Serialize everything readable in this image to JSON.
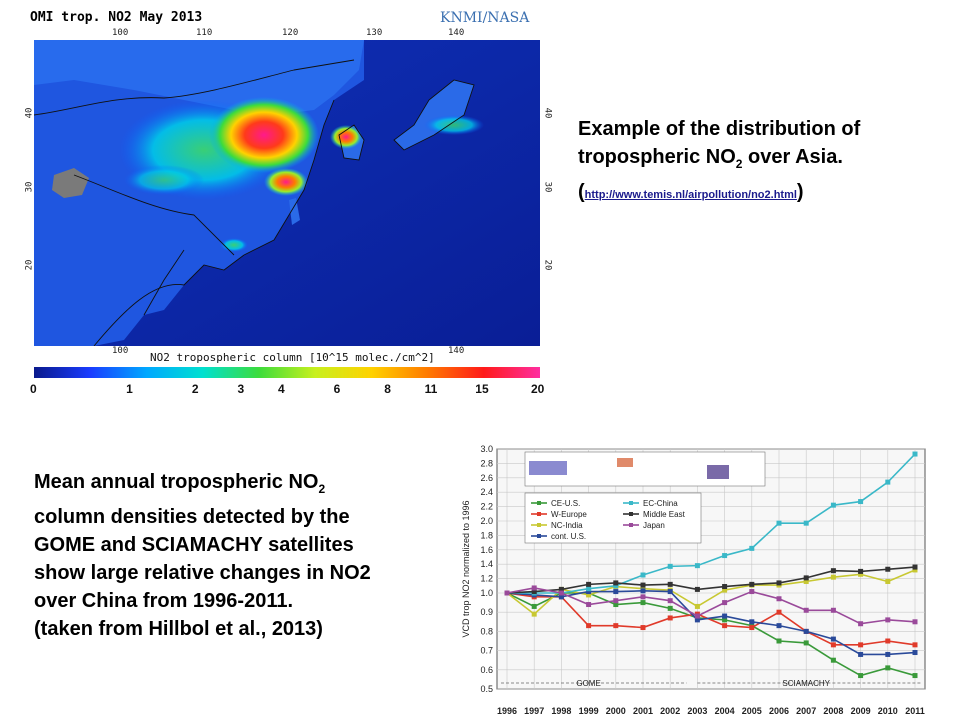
{
  "map": {
    "title": "OMI trop. NO2  May 2013",
    "credit": "KNMI/NASA",
    "lon_ticks": [
      "100",
      "110",
      "120",
      "130",
      "140"
    ],
    "lat_ticks": [
      "40",
      "30",
      "20"
    ],
    "caption": "NO2 tropospheric column [10^15 molec./cm^2]",
    "colorbar_labels": [
      "0",
      "1",
      "2",
      "3",
      "4",
      "6",
      "8",
      "11",
      "15",
      "20"
    ],
    "colorbar_colors": [
      "#0a1a8c",
      "#1a3cff",
      "#00a8ff",
      "#00e0d0",
      "#3cdc3c",
      "#c8f01e",
      "#ffd200",
      "#ff7a00",
      "#ff1a1a",
      "#ff2ea0"
    ]
  },
  "map_description": {
    "line1": "Example of the distribution of",
    "line2_pre": "tropospheric NO",
    "line2_sub": "2",
    "line2_post": " over Asia.",
    "paren_open": "(",
    "link": "http://www.temis.nl/airpollution/no2.html",
    "paren_close": ")"
  },
  "chart_description": {
    "line1_pre": "Mean annual tropospheric NO",
    "line1_sub": "2",
    "line2": "column densities detected by the",
    "line3": "GOME and SCIAMACHY satellites",
    "line4": "show large relative changes in NO2",
    "line5": "over China from 1996-2011.",
    "line6": "(taken from Hillbol et al., 2013)"
  },
  "chart_data": {
    "type": "line",
    "ylabel": "VCD trop NO2 normalized to 1996",
    "ylim": [
      0.5,
      3.0
    ],
    "yticks": [
      "0.5",
      "0.6",
      "0.7",
      "0.8",
      "0.9",
      "1.0",
      "1.2",
      "1.4",
      "1.6",
      "1.8",
      "2.0",
      "2.2",
      "2.4",
      "2.6",
      "2.8",
      "3.0"
    ],
    "x": [
      "1996",
      "1997",
      "1998",
      "1999",
      "2000",
      "2001",
      "2002",
      "2003",
      "2004",
      "2005",
      "2006",
      "2007",
      "2008",
      "2009",
      "2010",
      "2011"
    ],
    "segment_labels": [
      "GOME",
      "SCIAMACHY"
    ],
    "grid": true,
    "legend_position": "top-left",
    "series": [
      {
        "name": "CE-U.S.",
        "color": "#3a9a3a",
        "values": [
          1.0,
          0.93,
          1.0,
          1.0,
          0.94,
          0.95,
          0.92,
          0.87,
          0.86,
          0.83,
          0.75,
          0.74,
          0.65,
          0.57,
          0.61,
          0.57
        ]
      },
      {
        "name": "W-Europe",
        "color": "#e03a2a",
        "values": [
          1.0,
          0.98,
          0.98,
          0.83,
          0.83,
          0.82,
          0.87,
          0.89,
          0.83,
          0.82,
          0.9,
          0.8,
          0.73,
          0.73,
          0.75,
          0.73
        ]
      },
      {
        "name": "NC-India",
        "color": "#c8c832",
        "values": [
          1.0,
          0.89,
          1.05,
          0.99,
          1.09,
          1.06,
          1.04,
          0.93,
          1.04,
          1.11,
          1.11,
          1.16,
          1.22,
          1.26,
          1.16,
          1.32
        ]
      },
      {
        "name": "cont. U.S.",
        "color": "#2a4a9a",
        "values": [
          1.0,
          0.99,
          0.98,
          1.02,
          1.02,
          1.03,
          1.02,
          0.86,
          0.88,
          0.85,
          0.83,
          0.8,
          0.76,
          0.68,
          0.68,
          0.69
        ]
      },
      {
        "name": "EC-China",
        "color": "#3ab8c8",
        "values": [
          1.0,
          1.0,
          1.0,
          1.06,
          1.1,
          1.25,
          1.37,
          1.38,
          1.52,
          1.62,
          1.97,
          1.97,
          2.22,
          2.27,
          2.54,
          2.93
        ]
      },
      {
        "name": "Middle East",
        "color": "#333333",
        "values": [
          1.0,
          1.02,
          1.05,
          1.12,
          1.14,
          1.11,
          1.12,
          1.05,
          1.09,
          1.12,
          1.14,
          1.21,
          1.31,
          1.3,
          1.33,
          1.36
        ]
      },
      {
        "name": "Japan",
        "color": "#9a4a9a",
        "values": [
          1.0,
          1.07,
          1.0,
          0.94,
          0.96,
          0.98,
          0.96,
          0.88,
          0.95,
          1.02,
          0.97,
          0.91,
          0.91,
          0.84,
          0.86,
          0.85
        ]
      }
    ]
  }
}
